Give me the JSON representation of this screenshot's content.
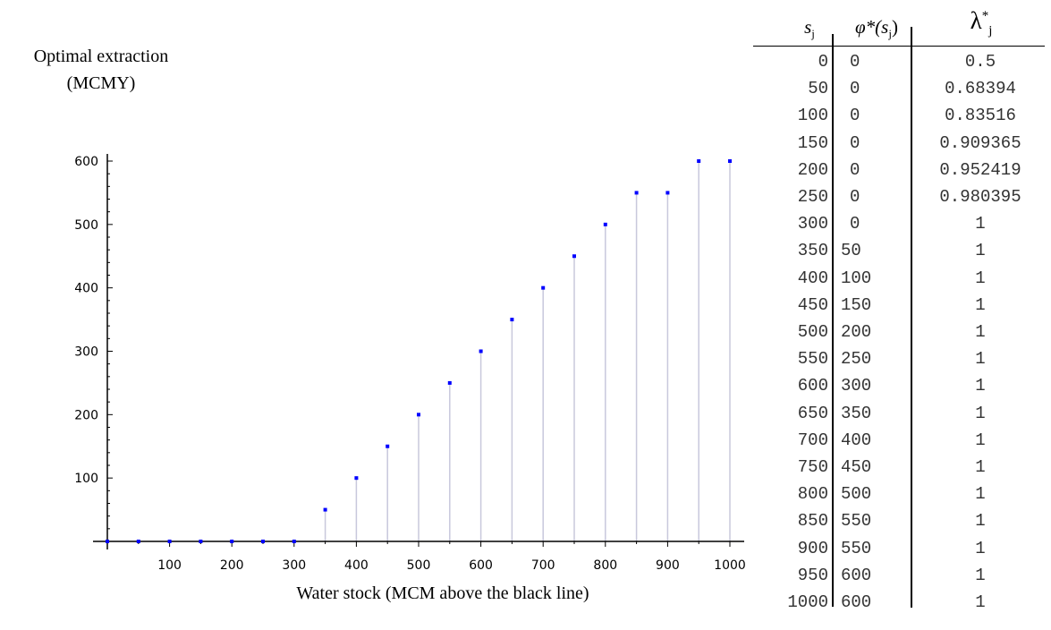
{
  "chart_data": {
    "type": "scatter",
    "ylabel": "Optimal extraction\n(MCMY)",
    "xlabel": "Water stock (MCM above the black line)",
    "x": [
      0,
      50,
      100,
      150,
      200,
      250,
      300,
      350,
      400,
      450,
      500,
      550,
      600,
      650,
      700,
      750,
      800,
      850,
      900,
      950,
      1000
    ],
    "y": [
      0,
      0,
      0,
      0,
      0,
      0,
      0,
      50,
      100,
      150,
      200,
      250,
      300,
      350,
      400,
      450,
      500,
      550,
      550,
      600,
      600
    ],
    "xticks": [
      "100",
      "200",
      "300",
      "400",
      "500",
      "600",
      "700",
      "800",
      "900",
      "1000"
    ],
    "yticks": [
      "100",
      "200",
      "300",
      "400",
      "500",
      "600"
    ],
    "xlim": [
      0,
      1000
    ],
    "ylim": [
      0,
      600
    ],
    "grid": false,
    "marker_color": "#0000ff",
    "drop_line_color": "#c8c8dc"
  },
  "table": {
    "headers": {
      "s_symbol": "s",
      "s_sub": "j",
      "phi_symbol": "φ*(s",
      "phi_sub": "j",
      "phi_close": ")",
      "lambda_symbol": "λ",
      "lambda_sup": "*",
      "lambda_sub": "j"
    },
    "rows": [
      [
        "0",
        "0",
        "0.5"
      ],
      [
        "50",
        "0",
        "0.68394"
      ],
      [
        "100",
        "0",
        "0.83516"
      ],
      [
        "150",
        "0",
        "0.909365"
      ],
      [
        "200",
        "0",
        "0.952419"
      ],
      [
        "250",
        "0",
        "0.980395"
      ],
      [
        "300",
        "0",
        "1"
      ],
      [
        "350",
        "50",
        "1"
      ],
      [
        "400",
        "100",
        "1"
      ],
      [
        "450",
        "150",
        "1"
      ],
      [
        "500",
        "200",
        "1"
      ],
      [
        "550",
        "250",
        "1"
      ],
      [
        "600",
        "300",
        "1"
      ],
      [
        "650",
        "350",
        "1"
      ],
      [
        "700",
        "400",
        "1"
      ],
      [
        "750",
        "450",
        "1"
      ],
      [
        "800",
        "500",
        "1"
      ],
      [
        "850",
        "550",
        "1"
      ],
      [
        "900",
        "550",
        "1"
      ],
      [
        "950",
        "600",
        "1"
      ],
      [
        "1000",
        "600",
        "1"
      ]
    ]
  }
}
